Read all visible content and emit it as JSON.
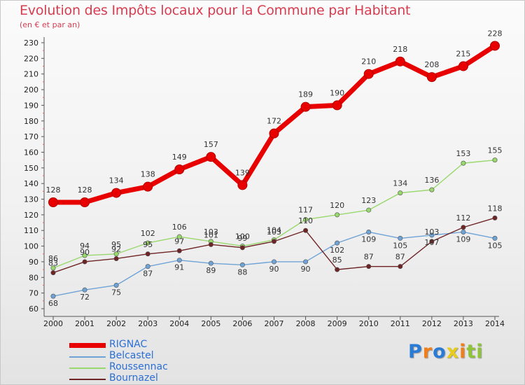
{
  "title": "Evolution des Impôts locaux pour la Commune par Habitant",
  "subtitle": "(en € et par an)",
  "logo": {
    "text": "Proxiti",
    "colors": [
      "#2a7bd5",
      "#f07e1b",
      "#2a7bd5",
      "#e8cc1c",
      "#f07e1b",
      "#8fc43a",
      "#8fc43a"
    ]
  },
  "chart_data": {
    "type": "line",
    "title": "Evolution des Impôts locaux pour la Commune par Habitant",
    "subtitle": "(en € et par an)",
    "x": [
      "2000",
      "2001",
      "2002",
      "2003",
      "2004",
      "2005",
      "2006",
      "2007",
      "2008",
      "2009",
      "2010",
      "2011",
      "2012",
      "2013",
      "2014"
    ],
    "ylim": [
      60,
      230
    ],
    "yticks": [
      60,
      70,
      80,
      90,
      100,
      110,
      120,
      130,
      140,
      150,
      160,
      170,
      180,
      190,
      200,
      210,
      220,
      230
    ],
    "grid": false,
    "legend": "bottom-left",
    "series": [
      {
        "name": "RIGNAC",
        "color": "#e80000",
        "values": [
          128,
          128,
          134,
          138,
          149,
          157,
          139,
          172,
          189,
          190,
          210,
          218,
          208,
          215,
          228
        ]
      },
      {
        "name": "Belcastel",
        "color": "#6fa3d6",
        "values": [
          68,
          72,
          75,
          87,
          91,
          89,
          88,
          90,
          90,
          102,
          109,
          105,
          107,
          109,
          105
        ]
      },
      {
        "name": "Roussennac",
        "color": "#98d86c",
        "values": [
          86,
          94,
          95,
          102,
          106,
          103,
          100,
          104,
          117,
          120,
          123,
          134,
          136,
          153,
          155
        ]
      },
      {
        "name": "Bournazel",
        "color": "#6e2424",
        "values": [
          83,
          90,
          92,
          95,
          97,
          101,
          99,
          103,
          110,
          85,
          87,
          87,
          103,
          112,
          118
        ]
      }
    ]
  }
}
